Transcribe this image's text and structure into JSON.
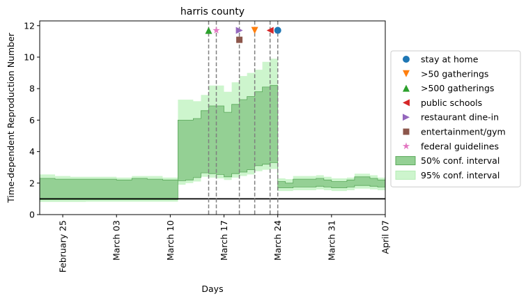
{
  "chart_data": {
    "type": "line",
    "title": "harris county",
    "xlabel": "Days",
    "ylabel": "Time-dependent Reproduction Number",
    "xlim": [
      "2020-02-22",
      "2020-04-07"
    ],
    "ylim": [
      0,
      12.3
    ],
    "yticks": [
      0,
      2,
      4,
      6,
      8,
      10,
      12
    ],
    "xticks": [
      {
        "date": "2020-02-25",
        "label": "February 25"
      },
      {
        "date": "2020-03-03",
        "label": "March 03"
      },
      {
        "date": "2020-03-10",
        "label": "March 10"
      },
      {
        "date": "2020-03-17",
        "label": "March 17"
      },
      {
        "date": "2020-03-24",
        "label": "March 24"
      },
      {
        "date": "2020-03-31",
        "label": "March 31"
      },
      {
        "date": "2020-04-07",
        "label": "April 07"
      }
    ],
    "grid": false,
    "legend_position": "right",
    "reference_line": {
      "y": 1,
      "color": "#000000"
    },
    "colors": {
      "ci50_fill": "#94d094",
      "ci50_edge": "#5aa85a",
      "ci95_fill": "#cdf5cd",
      "vline": "#7f7f7f"
    },
    "intervals": [
      {
        "date": "2020-02-22",
        "lo50": 0.95,
        "hi50": 2.3,
        "lo95": 0.8,
        "hi95": 2.55
      },
      {
        "date": "2020-02-24",
        "lo50": 0.95,
        "hi50": 2.25,
        "lo95": 0.8,
        "hi95": 2.45
      },
      {
        "date": "2020-02-26",
        "lo50": 0.95,
        "hi50": 2.25,
        "lo95": 0.8,
        "hi95": 2.4
      },
      {
        "date": "2020-02-28",
        "lo50": 0.95,
        "hi50": 2.25,
        "lo95": 0.82,
        "hi95": 2.4
      },
      {
        "date": "2020-03-01",
        "lo50": 0.95,
        "hi50": 2.25,
        "lo95": 0.82,
        "hi95": 2.4
      },
      {
        "date": "2020-03-03",
        "lo50": 0.95,
        "hi50": 2.2,
        "lo95": 0.82,
        "hi95": 2.35
      },
      {
        "date": "2020-03-05",
        "lo50": 0.95,
        "hi50": 2.3,
        "lo95": 0.82,
        "hi95": 2.45
      },
      {
        "date": "2020-03-07",
        "lo50": 0.95,
        "hi50": 2.25,
        "lo95": 0.82,
        "hi95": 2.45
      },
      {
        "date": "2020-03-09",
        "lo50": 0.95,
        "hi50": 2.2,
        "lo95": 0.82,
        "hi95": 2.35
      },
      {
        "date": "2020-03-11",
        "lo50": 2.15,
        "hi50": 6.0,
        "lo95": 1.9,
        "hi95": 7.3
      },
      {
        "date": "2020-03-12",
        "lo50": 2.2,
        "hi50": 6.0,
        "lo95": 2.0,
        "hi95": 7.3
      },
      {
        "date": "2020-03-13",
        "lo50": 2.35,
        "hi50": 6.1,
        "lo95": 2.1,
        "hi95": 7.2
      },
      {
        "date": "2020-03-14",
        "lo50": 2.65,
        "hi50": 6.6,
        "lo95": 2.4,
        "hi95": 7.6
      },
      {
        "date": "2020-03-15",
        "lo50": 2.6,
        "hi50": 6.9,
        "lo95": 2.35,
        "hi95": 8.2
      },
      {
        "date": "2020-03-16",
        "lo50": 2.55,
        "hi50": 6.9,
        "lo95": 2.3,
        "hi95": 8.2
      },
      {
        "date": "2020-03-17",
        "lo50": 2.4,
        "hi50": 6.5,
        "lo95": 2.2,
        "hi95": 7.8
      },
      {
        "date": "2020-03-18",
        "lo50": 2.6,
        "hi50": 7.0,
        "lo95": 2.35,
        "hi95": 8.4
      },
      {
        "date": "2020-03-19",
        "lo50": 2.7,
        "hi50": 7.3,
        "lo95": 2.45,
        "hi95": 8.8
      },
      {
        "date": "2020-03-20",
        "lo50": 2.85,
        "hi50": 7.5,
        "lo95": 2.55,
        "hi95": 9.0
      },
      {
        "date": "2020-03-21",
        "lo50": 3.1,
        "hi50": 7.8,
        "lo95": 2.75,
        "hi95": 9.2
      },
      {
        "date": "2020-03-22",
        "lo50": 3.2,
        "hi50": 8.1,
        "lo95": 2.85,
        "hi95": 9.7
      },
      {
        "date": "2020-03-23",
        "lo50": 3.3,
        "hi50": 8.2,
        "lo95": 2.9,
        "hi95": 9.9
      },
      {
        "date": "2020-03-24",
        "lo50": 1.7,
        "hi50": 2.1,
        "lo95": 1.5,
        "hi95": 2.3
      },
      {
        "date": "2020-03-25",
        "lo50": 1.7,
        "hi50": 2.0,
        "lo95": 1.5,
        "hi95": 2.25
      },
      {
        "date": "2020-03-26",
        "lo50": 1.75,
        "hi50": 2.25,
        "lo95": 1.55,
        "hi95": 2.45
      },
      {
        "date": "2020-03-29",
        "lo50": 1.8,
        "hi50": 2.3,
        "lo95": 1.6,
        "hi95": 2.5
      },
      {
        "date": "2020-03-30",
        "lo50": 1.75,
        "hi50": 2.2,
        "lo95": 1.55,
        "hi95": 2.4
      },
      {
        "date": "2020-03-31",
        "lo50": 1.7,
        "hi50": 2.1,
        "lo95": 1.5,
        "hi95": 2.3
      },
      {
        "date": "2020-04-02",
        "lo50": 1.75,
        "hi50": 2.2,
        "lo95": 1.55,
        "hi95": 2.35
      },
      {
        "date": "2020-04-03",
        "lo50": 1.85,
        "hi50": 2.4,
        "lo95": 1.65,
        "hi95": 2.6
      },
      {
        "date": "2020-04-05",
        "lo50": 1.8,
        "hi50": 2.3,
        "lo95": 1.6,
        "hi95": 2.5
      },
      {
        "date": "2020-04-06",
        "lo50": 1.75,
        "hi50": 2.2,
        "lo95": 1.55,
        "hi95": 2.35
      },
      {
        "date": "2020-04-07",
        "lo50": 1.75,
        "hi50": 2.2,
        "lo95": 1.55,
        "hi95": 2.35
      }
    ],
    "interventions": [
      {
        "name": "stay at home",
        "date": "2020-03-24",
        "y": 11.7,
        "marker": "circle",
        "color": "#1f77b4"
      },
      {
        "name": ">50 gatherings",
        "date": "2020-03-21",
        "y": 11.7,
        "marker": "tri-down",
        "color": "#ff7f0e"
      },
      {
        "name": ">500 gatherings",
        "date": "2020-03-15",
        "y": 11.7,
        "marker": "tri-up",
        "color": "#2ca02c"
      },
      {
        "name": "public schools",
        "date": "2020-03-23",
        "y": 11.7,
        "marker": "tri-left",
        "color": "#d62728"
      },
      {
        "name": "restaurant dine-in",
        "date": "2020-03-19",
        "y": 11.7,
        "marker": "tri-right",
        "color": "#9467bd"
      },
      {
        "name": "entertainment/gym",
        "date": "2020-03-19",
        "y": 11.1,
        "marker": "square",
        "color": "#8c564b"
      },
      {
        "name": "federal guidelines",
        "date": "2020-03-16",
        "y": 11.7,
        "marker": "star",
        "color": "#e377c2"
      }
    ],
    "legend": [
      {
        "label": "stay at home",
        "kind": "marker",
        "marker": "circle",
        "color": "#1f77b4"
      },
      {
        "label": ">50 gatherings",
        "kind": "marker",
        "marker": "tri-down",
        "color": "#ff7f0e"
      },
      {
        "label": ">500 gatherings",
        "kind": "marker",
        "marker": "tri-up",
        "color": "#2ca02c"
      },
      {
        "label": "public schools",
        "kind": "marker",
        "marker": "tri-left",
        "color": "#d62728"
      },
      {
        "label": "restaurant dine-in",
        "kind": "marker",
        "marker": "tri-right",
        "color": "#9467bd"
      },
      {
        "label": "entertainment/gym",
        "kind": "marker",
        "marker": "square",
        "color": "#8c564b"
      },
      {
        "label": "federal guidelines",
        "kind": "marker",
        "marker": "star",
        "color": "#e377c2"
      },
      {
        "label": "50% conf. interval",
        "kind": "patch",
        "color": "#94d094",
        "edge": "#5aa85a"
      },
      {
        "label": "95% conf. interval",
        "kind": "patch",
        "color": "#cdf5cd",
        "edge": "#b5ecb5"
      }
    ]
  }
}
